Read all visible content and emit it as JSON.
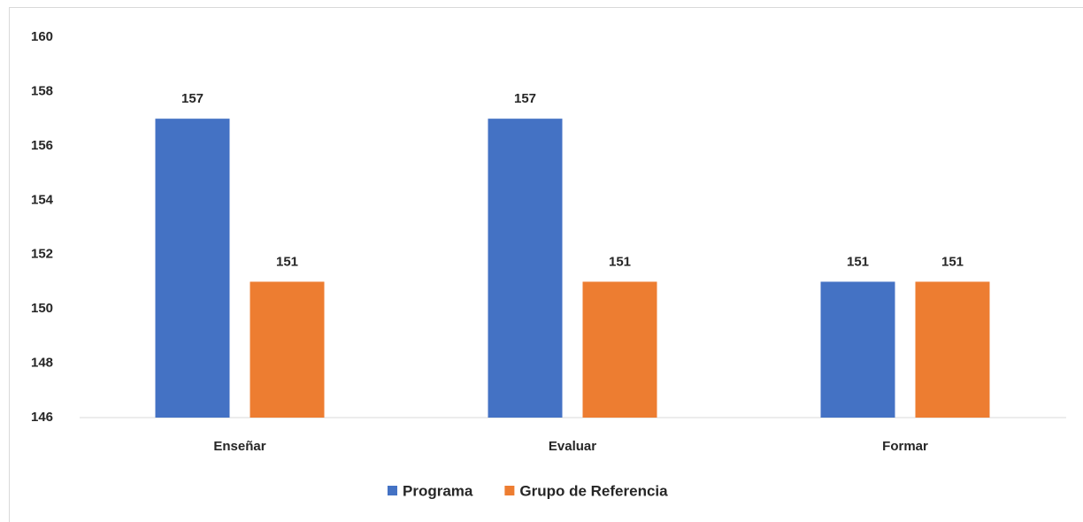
{
  "chart_data": {
    "type": "bar",
    "categories": [
      "Enseñar",
      "Evaluar",
      "Formar"
    ],
    "series": [
      {
        "name": "Programa",
        "color": "#4472c4",
        "values": [
          157,
          157,
          151
        ]
      },
      {
        "name": "Grupo de Referencia",
        "color": "#ed7d31",
        "values": [
          151,
          151,
          151
        ]
      }
    ],
    "ylim": [
      146,
      160
    ],
    "yticks": [
      146,
      148,
      150,
      152,
      154,
      156,
      158,
      160
    ],
    "grid": false,
    "legend": "bottom"
  }
}
